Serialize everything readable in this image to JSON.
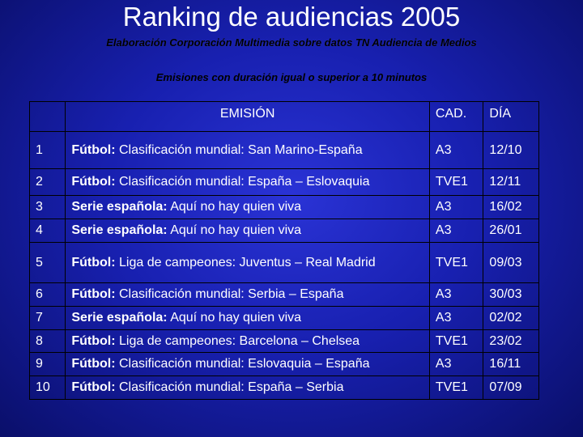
{
  "title": "Ranking de audiencias 2005",
  "subtitle": "Elaboración Corporación Multimedia sobre datos TN Audiencia de Medios",
  "note": "Emisiones con duración igual o superior a 10 minutos",
  "table": {
    "headers": {
      "num": "",
      "emision": "EMISIÓN",
      "cad": "CAD.",
      "dia": "DÍA"
    },
    "rows": [
      {
        "num": "1",
        "genre": "Fútbol:",
        "title": " Clasificación mundial: San Marino-España",
        "cad": "A3",
        "dia": "12/10"
      },
      {
        "num": "2",
        "genre": "Fútbol:",
        "title": " Clasificación mundial: España – Eslovaquia",
        "cad": "TVE1",
        "dia": "12/11"
      },
      {
        "num": "3",
        "genre": "Serie española:",
        "title": " Aquí no hay quien viva",
        "cad": "A3",
        "dia": "16/02"
      },
      {
        "num": "4",
        "genre": "Serie española:",
        "title": " Aquí no hay quien viva",
        "cad": "A3",
        "dia": "26/01"
      },
      {
        "num": "5",
        "genre": "Fútbol:",
        "title": " Liga de campeones: Juventus – Real Madrid",
        "cad": "TVE1",
        "dia": "09/03"
      },
      {
        "num": "6",
        "genre": "Fútbol:",
        "title": " Clasificación mundial: Serbia – España",
        "cad": "A3",
        "dia": "30/03"
      },
      {
        "num": "7",
        "genre": "Serie española:",
        "title": " Aquí no hay quien viva",
        "cad": "A3",
        "dia": "02/02"
      },
      {
        "num": "8",
        "genre": "Fútbol:",
        "title": " Liga de campeones: Barcelona – Chelsea",
        "cad": "TVE1",
        "dia": "23/02"
      },
      {
        "num": "9",
        "genre": "Fútbol:",
        "title": " Clasificación mundial: Eslovaquia – España",
        "cad": "A3",
        "dia": "16/11"
      },
      {
        "num": "10",
        "genre": "Fútbol:",
        "title": " Clasificación mundial: España – Serbia",
        "cad": "TVE1",
        "dia": "07/09"
      }
    ]
  }
}
